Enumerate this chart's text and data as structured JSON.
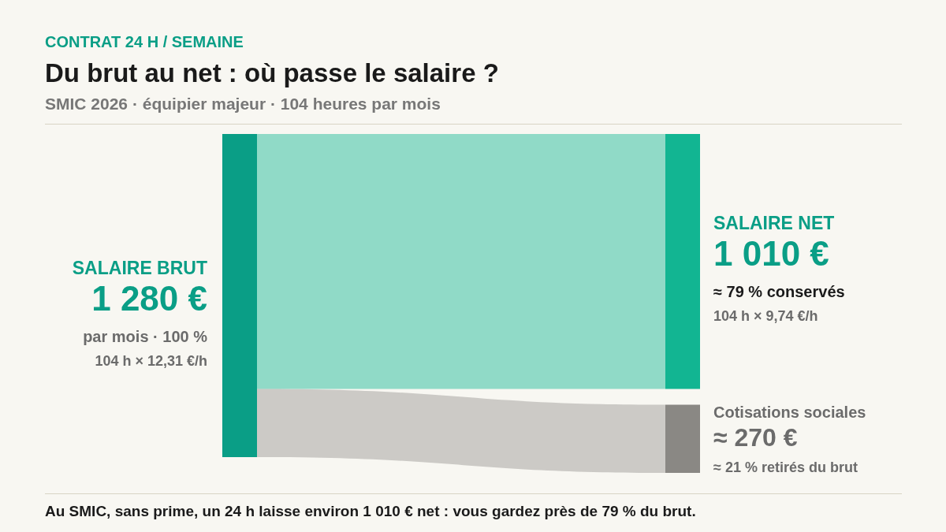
{
  "chart_data": {
    "type": "other",
    "title": "Du brut au net : où passe le salaire ?",
    "subtitle": "SMIC 2026 · équipier majeur · 104 heures par mois",
    "categories": [
      "SALAIRE BRUT",
      "SALAIRE NET",
      "Cotisations sociales"
    ],
    "values": [
      1280,
      1010,
      270
    ],
    "value_labels": [
      "1 280 €",
      "1 010 €",
      "≈ 270 €"
    ],
    "colors": [
      "#0a9e86",
      "#12b592",
      "#8a8884"
    ],
    "annotations": [
      "CONTRAT 24 H / SEMAINE",
      "par mois · 100 %",
      "104 h × 12,31 €/h",
      "≈ 79 % conservés",
      "104 h × 9,74 €/h",
      "≈ 21 % retirés du brut",
      "Au SMIC, sans prime, un 24 h laisse environ 1 010 € net : vous gardez près de 79 % du brut."
    ]
  }
}
